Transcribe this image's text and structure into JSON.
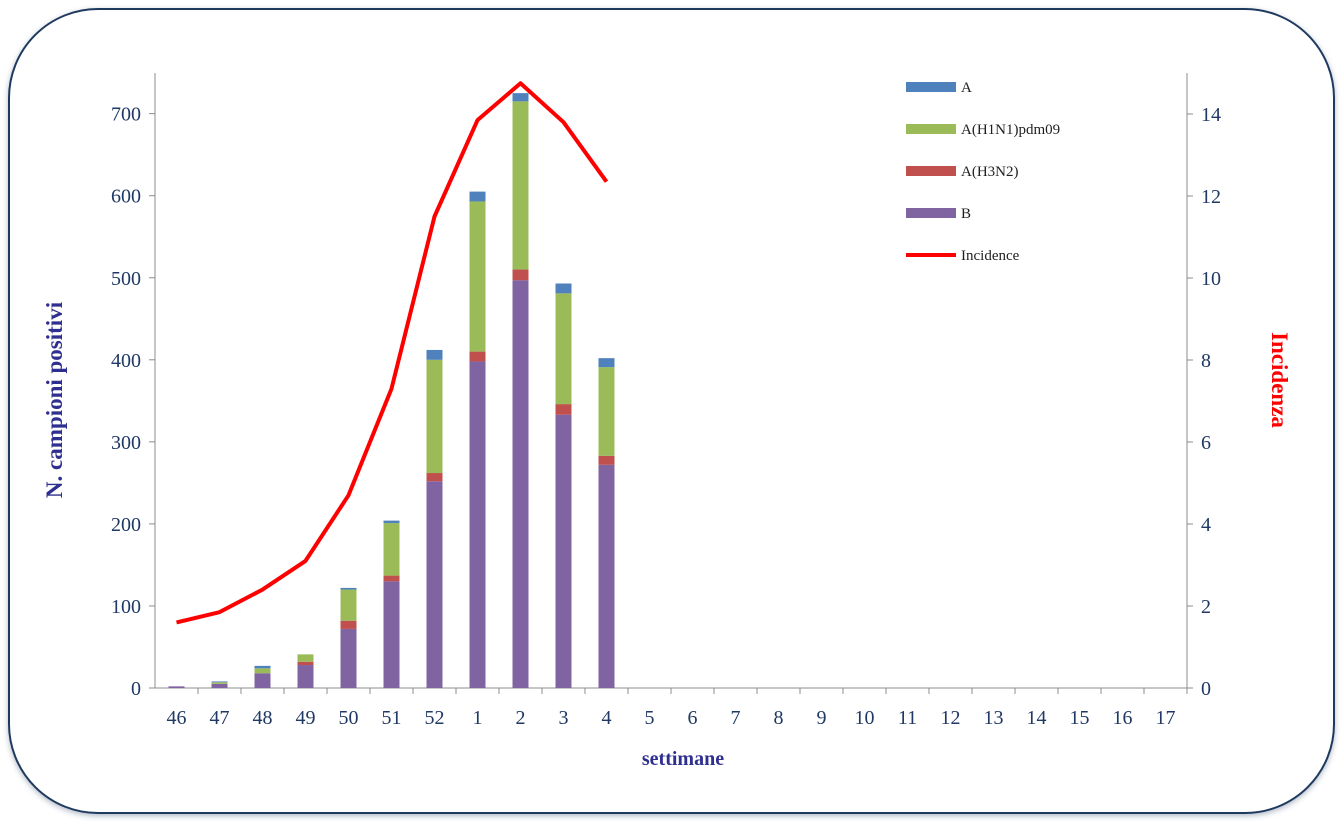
{
  "chart_data": {
    "type": "bar",
    "stacked": true,
    "categories": [
      "46",
      "47",
      "48",
      "49",
      "50",
      "51",
      "52",
      "1",
      "2",
      "3",
      "4",
      "5",
      "6",
      "7",
      "8",
      "9",
      "10",
      "11",
      "12",
      "13",
      "14",
      "15",
      "16",
      "17"
    ],
    "xlabel": "settimane",
    "ylabel": "N. campioni positivi",
    "y2label": "Incidenza",
    "ylim": [
      0,
      750
    ],
    "yticks": [
      0,
      100,
      200,
      300,
      400,
      500,
      600,
      700
    ],
    "y2lim": [
      0,
      15
    ],
    "y2ticks": [
      0,
      2,
      4,
      6,
      8,
      10,
      12,
      14
    ],
    "legend_position": "top-right",
    "series": [
      {
        "name": "B",
        "color": "#8064a2",
        "values": [
          2,
          5,
          18,
          28,
          72,
          130,
          252,
          398,
          497,
          333,
          272,
          null,
          null,
          null,
          null,
          null,
          null,
          null,
          null,
          null,
          null,
          null,
          null,
          null
        ]
      },
      {
        "name": "A(H3N2)",
        "color": "#c0504d",
        "values": [
          0,
          0,
          0,
          4,
          10,
          7,
          10,
          12,
          13,
          13,
          11,
          null,
          null,
          null,
          null,
          null,
          null,
          null,
          null,
          null,
          null,
          null,
          null,
          null
        ]
      },
      {
        "name": "A(H1N1)pdm09",
        "color": "#9bbb59",
        "values": [
          0,
          2,
          6,
          9,
          38,
          64,
          138,
          183,
          205,
          135,
          108,
          null,
          null,
          null,
          null,
          null,
          null,
          null,
          null,
          null,
          null,
          null,
          null,
          null
        ]
      },
      {
        "name": "A",
        "color": "#4f81bd",
        "values": [
          0,
          1,
          3,
          0,
          2,
          3,
          12,
          12,
          10,
          12,
          11,
          null,
          null,
          null,
          null,
          null,
          null,
          null,
          null,
          null,
          null,
          null,
          null,
          null
        ]
      }
    ],
    "line_series": {
      "name": "Incidence",
      "color": "#ff0000",
      "axis": "right",
      "values": [
        1.6,
        1.85,
        2.4,
        3.1,
        4.7,
        7.3,
        11.5,
        13.85,
        14.75,
        13.8,
        12.35,
        null,
        null,
        null,
        null,
        null,
        null,
        null,
        null,
        null,
        null,
        null,
        null,
        null
      ]
    },
    "legend_order": [
      "A",
      "A(H1N1)pdm09",
      "A(H3N2)",
      "B",
      "Incidence"
    ]
  }
}
